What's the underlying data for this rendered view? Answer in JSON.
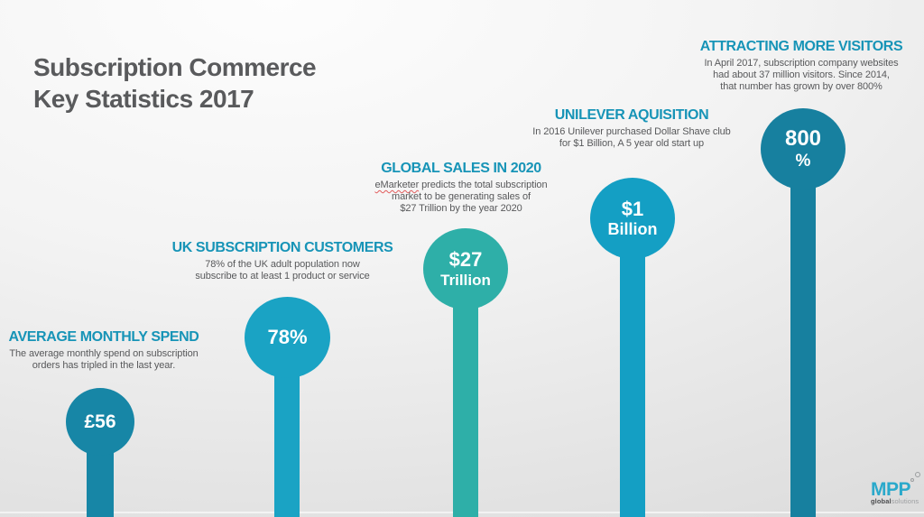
{
  "title": {
    "line1": "Subscription Commerce",
    "line2": "Key Statistics 2017"
  },
  "stats": [
    {
      "heading": "AVERAGE MONTHLY SPEND",
      "description_lines": [
        "The average monthly spend on subscription",
        "orders has tripled in the last year."
      ],
      "value_top": "£56",
      "value_bottom": "",
      "color": "#1786a6"
    },
    {
      "heading": "UK SUBSCRIPTION CUSTOMERS",
      "description_lines": [
        "78% of the UK adult population now",
        "subscribe to at least 1 product or service"
      ],
      "value_top": "78%",
      "value_bottom": "",
      "color": "#1aa3c4"
    },
    {
      "heading": "GLOBAL SALES IN 2020",
      "spellcheck_word": "eMarketer",
      "description_lines": [
        "predicts the total subscription",
        "market to be generating sales of",
        "$27 Trillion by the year 2020"
      ],
      "value_top": "$27",
      "value_bottom": "Trillion",
      "color": "#2eafa8"
    },
    {
      "heading": "UNILEVER AQUISITION",
      "description_lines": [
        "In 2016 Unilever purchased Dollar Shave club",
        "for $1 Billion, A 5 year old start up"
      ],
      "value_top": "$1",
      "value_bottom": "Billion",
      "color": "#149fc4"
    },
    {
      "heading": "ATTRACTING MORE VISITORS",
      "description_lines": [
        "In April 2017, subscription company websites",
        "had about 37 million visitors. Since 2014,",
        "that number has grown by over 800%"
      ],
      "value_top": "800",
      "value_bottom": "%",
      "color": "#17809f"
    }
  ],
  "logo": {
    "name": "MPP",
    "sub_bold": "global",
    "sub_light": "solutions"
  },
  "colors": {
    "heading_teal": "#1794b7",
    "title_gray": "#595a5c",
    "body_gray": "#58595b",
    "value_text": "#ffffff",
    "spellcheck_underline": "#e15b5b",
    "background_top": "#fdfdfd",
    "background_bottom": "#d7d7d7",
    "logo_cyan": "#2aa9cb"
  },
  "chart_data": {
    "type": "bar",
    "subtype": "lollipop-infographic",
    "title": "Subscription Commerce Key Statistics 2017",
    "categories": [
      "AVERAGE MONTHLY SPEND",
      "UK SUBSCRIPTION CUSTOMERS",
      "GLOBAL SALES IN 2020",
      "UNILEVER AQUISITION",
      "ATTRACTING MORE VISITORS"
    ],
    "values": [
      "£56",
      "78%",
      "$27 Trillion",
      "$1 Billion",
      "800%"
    ],
    "notes": [
      "The average monthly spend on subscription orders has tripled in the last year.",
      "78% of the UK adult population now subscribe to at least 1 product or service",
      "eMarketer predicts the total subscription market to be generating sales of $27 Trillion by the year 2020",
      "In 2016 Unilever purchased Dollar Shave club for $1 Billion, A 5 year old start up",
      "In April 2017, subscription company websites had about 37 million visitors. Since 2014, that number has grown by over 800%"
    ],
    "bar_heights_relative": [
      1,
      2,
      3,
      4,
      5
    ],
    "not_to_scale": true,
    "legend": "none",
    "grid": "off"
  }
}
